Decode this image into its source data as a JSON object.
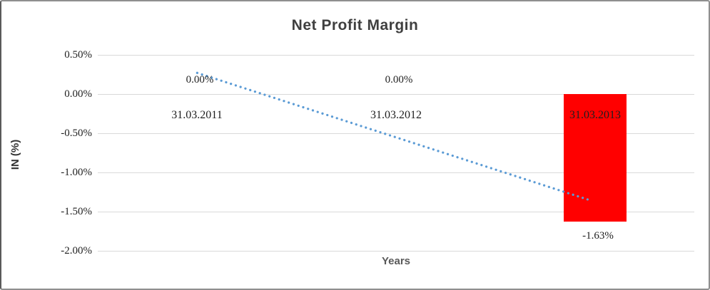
{
  "chart_data": {
    "type": "bar",
    "title": "Net Profit Margin",
    "xlabel": "Years",
    "ylabel": "IN (%)",
    "categories": [
      "31.03.2011",
      "31.03.2012",
      "31.03.2013"
    ],
    "values": [
      0.0,
      0.0,
      -1.63
    ],
    "data_labels": [
      "0.00%",
      "0.00%",
      "-1.63%"
    ],
    "ytick_values": [
      0.5,
      0.0,
      -0.5,
      -1.0,
      -1.5,
      -2.0
    ],
    "ytick_labels": [
      "0.50%",
      "0.00%",
      "-0.50%",
      "-1.00%",
      "-1.50%",
      "-2.00%"
    ],
    "ylim": [
      -2.0,
      0.5
    ],
    "grid": true,
    "legend": "none",
    "bar_color": "#FF0000",
    "gridline_color": "#d9d9d9",
    "trendline": {
      "type": "linear",
      "style": "dotted",
      "color": "#5B9BD5",
      "start_value": 0.27,
      "end_value": -1.36
    }
  }
}
